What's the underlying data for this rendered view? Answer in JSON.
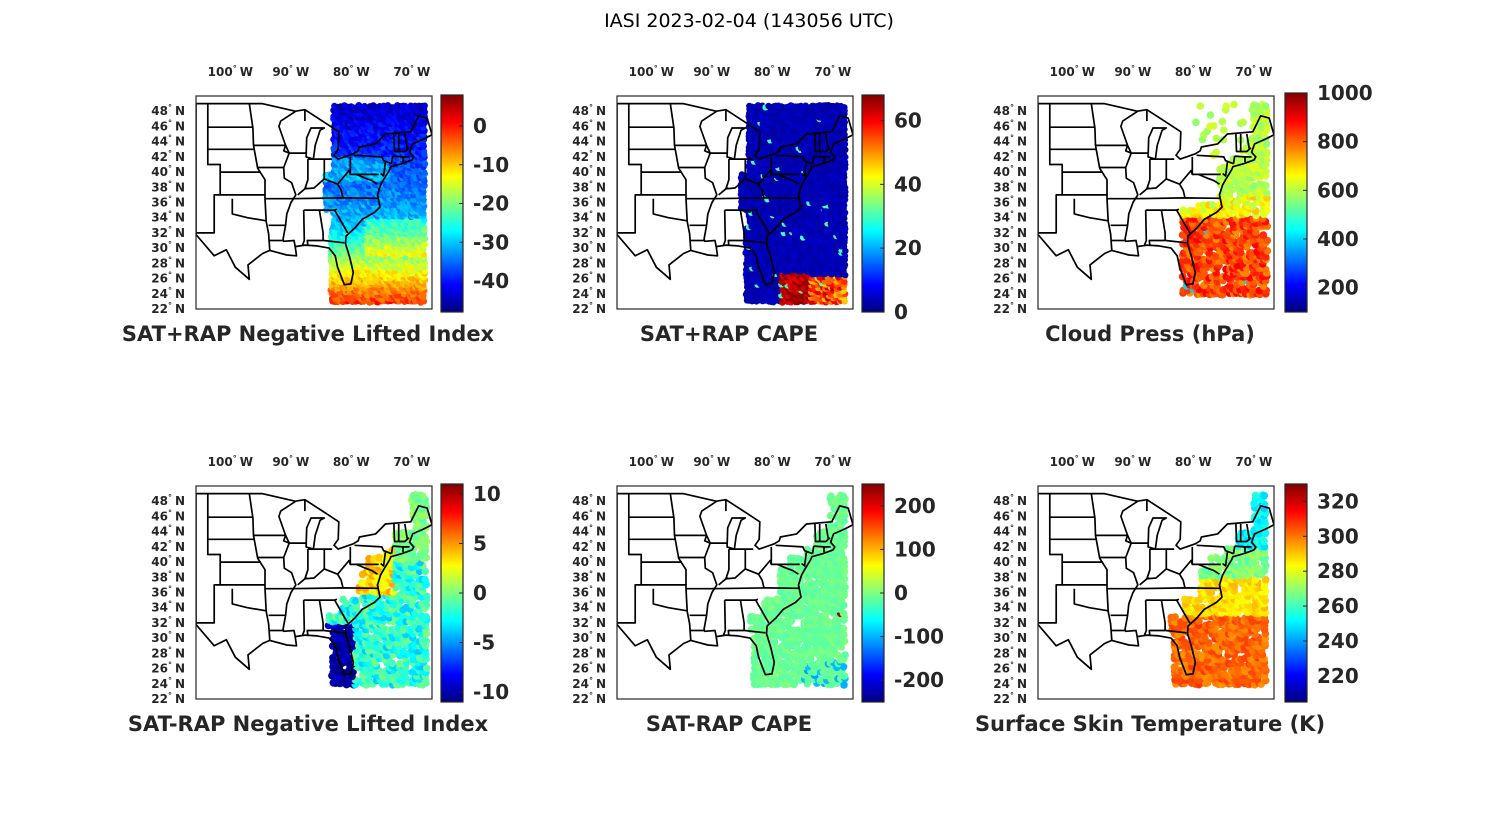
{
  "figure": {
    "title": "IASI 2023-02-04 (143056 UTC)"
  },
  "colors": {
    "colormap": "jet",
    "border": "#000000",
    "background": "#ffffff"
  },
  "panels": [
    {
      "id": "p1",
      "title": "SAT+RAP Negative Lifted Index",
      "lon_ticks": [
        {
          "deg": "100",
          "hemi": "W"
        },
        {
          "deg": "90",
          "hemi": "W"
        },
        {
          "deg": "80",
          "hemi": "W"
        },
        {
          "deg": "70",
          "hemi": "W"
        }
      ],
      "lat_ticks": [
        "48",
        "46",
        "44",
        "42",
        "40",
        "38",
        "36",
        "34",
        "32",
        "30",
        "28",
        "26",
        "24",
        "22"
      ],
      "lat_hemi": "N",
      "colorbar": {
        "range": [
          -48,
          8
        ],
        "ticks": [
          {
            "value": 0,
            "label": "0"
          },
          {
            "value": -10,
            "label": "-10"
          },
          {
            "value": -20,
            "label": "-20"
          },
          {
            "value": -30,
            "label": "-30"
          },
          {
            "value": -40,
            "label": "-40"
          }
        ]
      },
      "swath": {
        "lon_range": [
          -84.5,
          -68
        ],
        "lat_range": [
          23,
          49
        ],
        "shape": "band"
      }
    },
    {
      "id": "p2",
      "title": "SAT+RAP CAPE",
      "lon_ticks": [
        {
          "deg": "100",
          "hemi": "W"
        },
        {
          "deg": "90",
          "hemi": "W"
        },
        {
          "deg": "80",
          "hemi": "W"
        },
        {
          "deg": "70",
          "hemi": "W"
        }
      ],
      "lat_ticks": [
        "48",
        "46",
        "44",
        "42",
        "40",
        "38",
        "36",
        "34",
        "32",
        "30",
        "28",
        "26",
        "24",
        "22"
      ],
      "lat_hemi": "N",
      "colorbar": {
        "range": [
          0,
          68
        ],
        "ticks": [
          {
            "value": 60,
            "label": "60"
          },
          {
            "value": 40,
            "label": "40"
          },
          {
            "value": 20,
            "label": "20"
          },
          {
            "value": 0,
            "label": "0"
          }
        ]
      },
      "swath": {
        "lon_range": [
          -85.5,
          -68
        ],
        "lat_range": [
          23,
          49
        ],
        "shape": "band"
      }
    },
    {
      "id": "p3",
      "title": "Cloud Press (hPa)",
      "lon_ticks": [
        {
          "deg": "100",
          "hemi": "W"
        },
        {
          "deg": "90",
          "hemi": "W"
        },
        {
          "deg": "80",
          "hemi": "W"
        },
        {
          "deg": "70",
          "hemi": "W"
        }
      ],
      "lat_ticks": [
        "48",
        "46",
        "44",
        "42",
        "40",
        "38",
        "36",
        "34",
        "32",
        "30",
        "28",
        "26",
        "24",
        "22"
      ],
      "lat_hemi": "N",
      "colorbar": {
        "range": [
          100,
          1000
        ],
        "ticks": [
          {
            "value": 1000,
            "label": "1000"
          },
          {
            "value": 800,
            "label": "800"
          },
          {
            "value": 600,
            "label": "600"
          },
          {
            "value": 400,
            "label": "400"
          },
          {
            "value": 200,
            "label": "200"
          }
        ]
      },
      "swath": {
        "lon_range": [
          -82,
          -68
        ],
        "lat_range": [
          24,
          49
        ],
        "shape": "scatter"
      }
    },
    {
      "id": "p4",
      "title": "SAT-RAP Negative Lifted Index",
      "lon_ticks": [
        {
          "deg": "100",
          "hemi": "W"
        },
        {
          "deg": "90",
          "hemi": "W"
        },
        {
          "deg": "80",
          "hemi": "W"
        },
        {
          "deg": "70",
          "hemi": "W"
        }
      ],
      "lat_ticks": [
        "48",
        "46",
        "44",
        "42",
        "40",
        "38",
        "36",
        "34",
        "32",
        "30",
        "28",
        "26",
        "24",
        "22"
      ],
      "lat_hemi": "N",
      "colorbar": {
        "range": [
          -11,
          11
        ],
        "ticks": [
          {
            "value": 10,
            "label": "10"
          },
          {
            "value": 5,
            "label": "5"
          },
          {
            "value": 0,
            "label": "0"
          },
          {
            "value": -5,
            "label": "-5"
          },
          {
            "value": -10,
            "label": "-10"
          }
        ]
      },
      "swath": {
        "lon_range": [
          -84.5,
          -68
        ],
        "lat_range": [
          24,
          49
        ],
        "shape": "scatter"
      }
    },
    {
      "id": "p5",
      "title": "SAT-RAP CAPE",
      "lon_ticks": [
        {
          "deg": "100",
          "hemi": "W"
        },
        {
          "deg": "90",
          "hemi": "W"
        },
        {
          "deg": "80",
          "hemi": "W"
        },
        {
          "deg": "70",
          "hemi": "W"
        }
      ],
      "lat_ticks": [
        "48",
        "46",
        "44",
        "42",
        "40",
        "38",
        "36",
        "34",
        "32",
        "30",
        "28",
        "26",
        "24",
        "22"
      ],
      "lat_hemi": "N",
      "colorbar": {
        "range": [
          -250,
          250
        ],
        "ticks": [
          {
            "value": 200,
            "label": "200"
          },
          {
            "value": 100,
            "label": "100"
          },
          {
            "value": 0,
            "label": "0"
          },
          {
            "value": -100,
            "label": "-100"
          },
          {
            "value": -200,
            "label": "-200"
          }
        ]
      },
      "swath": {
        "lon_range": [
          -85.5,
          -68
        ],
        "lat_range": [
          24,
          49
        ],
        "shape": "scatter"
      }
    },
    {
      "id": "p6",
      "title": "Surface Skin Temperature (K)",
      "lon_ticks": [
        {
          "deg": "100",
          "hemi": "W"
        },
        {
          "deg": "90",
          "hemi": "W"
        },
        {
          "deg": "80",
          "hemi": "W"
        },
        {
          "deg": "70",
          "hemi": "W"
        }
      ],
      "lat_ticks": [
        "48",
        "46",
        "44",
        "42",
        "40",
        "38",
        "36",
        "34",
        "32",
        "30",
        "28",
        "26",
        "24",
        "22"
      ],
      "lat_hemi": "N",
      "colorbar": {
        "range": [
          205,
          330
        ],
        "ticks": [
          {
            "value": 320,
            "label": "320"
          },
          {
            "value": 300,
            "label": "300"
          },
          {
            "value": 280,
            "label": "280"
          },
          {
            "value": 260,
            "label": "260"
          },
          {
            "value": 240,
            "label": "240"
          },
          {
            "value": 220,
            "label": "220"
          }
        ]
      },
      "swath": {
        "lon_range": [
          -85,
          -68
        ],
        "lat_range": [
          24,
          49
        ],
        "shape": "scatter"
      }
    }
  ]
}
